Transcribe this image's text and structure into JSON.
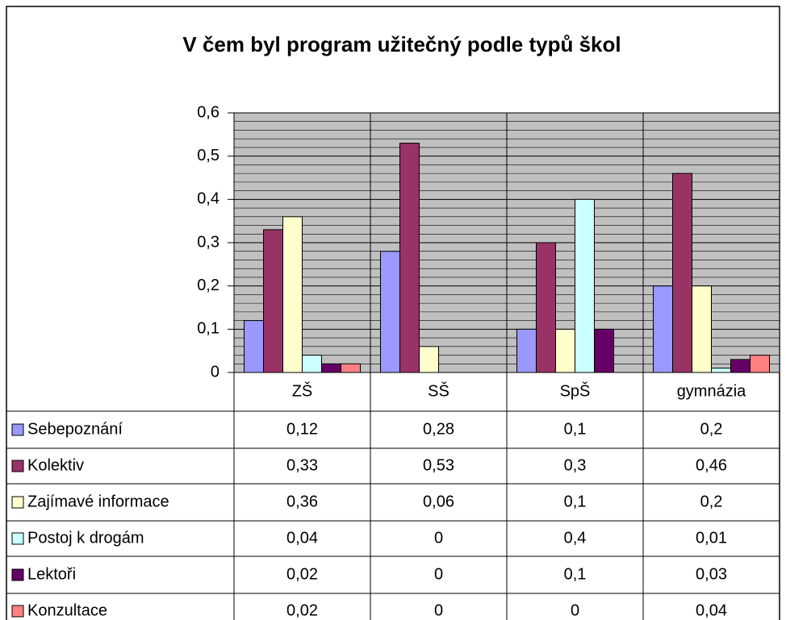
{
  "chart_data": {
    "type": "bar",
    "title": "V čem byl program užitečný podle typů škol",
    "categories": [
      "ZŠ",
      "SŠ",
      "SpŠ",
      "gymnázia"
    ],
    "series": [
      {
        "name": "Sebepoznání",
        "color": "#9999ff",
        "values": [
          0.12,
          0.28,
          0.1,
          0.2
        ],
        "value_labels": [
          "0,12",
          "0,28",
          "0,1",
          "0,2"
        ]
      },
      {
        "name": "Kolektiv",
        "color": "#993366",
        "values": [
          0.33,
          0.53,
          0.3,
          0.46
        ],
        "value_labels": [
          "0,33",
          "0,53",
          "0,3",
          "0,46"
        ]
      },
      {
        "name": "Zajímavé informace",
        "color": "#ffffcc",
        "values": [
          0.36,
          0.06,
          0.1,
          0.2
        ],
        "value_labels": [
          "0,36",
          "0,06",
          "0,1",
          "0,2"
        ]
      },
      {
        "name": "Postoj k drogám",
        "color": "#ccffff",
        "values": [
          0.04,
          0,
          0.4,
          0.01
        ],
        "value_labels": [
          "0,04",
          "0",
          "0,4",
          "0,01"
        ]
      },
      {
        "name": "Lektoři",
        "color": "#660066",
        "values": [
          0.02,
          0,
          0.1,
          0.03
        ],
        "value_labels": [
          "0,02",
          "0",
          "0,1",
          "0,03"
        ]
      },
      {
        "name": "Konzultace",
        "color": "#ff8080",
        "values": [
          0.02,
          0,
          0,
          0.04
        ],
        "value_labels": [
          "0,02",
          "0",
          "0",
          "0,04"
        ]
      }
    ],
    "ylim": [
      0,
      0.6
    ],
    "yticks": [
      0,
      {
        "value": 0.1,
        "label": "0,1"
      },
      {
        "value": 0.2,
        "label": "0,2"
      },
      {
        "value": 0.3,
        "label": "0,3"
      },
      {
        "value": 0.4,
        "label": "0,4"
      },
      {
        "value": 0.5,
        "label": "0,5"
      },
      {
        "value": 0.6,
        "label": "0,6"
      }
    ],
    "grid": true,
    "plot_background": "#c0c0c0"
  }
}
